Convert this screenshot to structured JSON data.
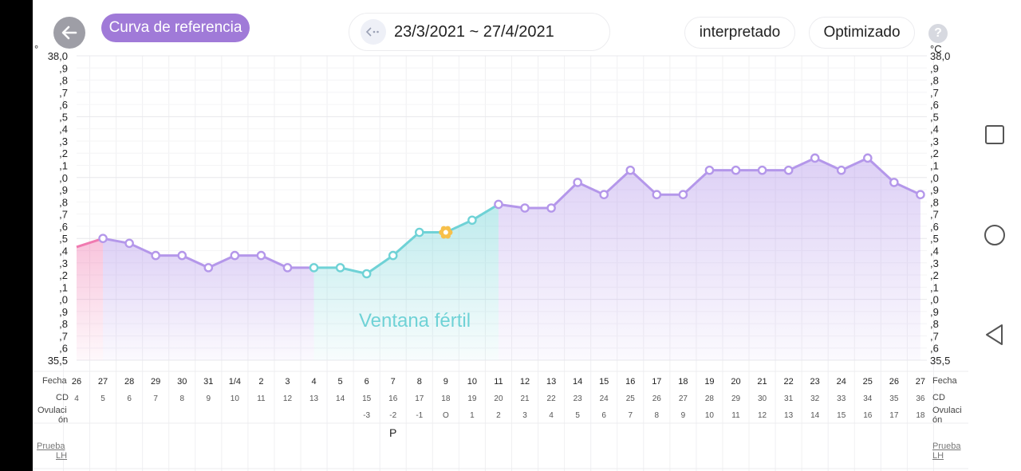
{
  "header": {
    "back_icon": "arrow-left-icon",
    "reference_curve_label": "Curva de referencia",
    "date_range": "23/3/2021 ~ 27/4/2021",
    "date_range_icon": "collapse-arrows-icon",
    "interpreted_label": "interpretado",
    "optimized_label": "Optimizado",
    "help_label": "?"
  },
  "axis": {
    "unit_left": "°",
    "unit_right": "°C",
    "tick_labels": [
      "35,5",
      ",6",
      ",7",
      ",8",
      ",9",
      ",0",
      ",1",
      ",2",
      ",3",
      ",4",
      ",5",
      ",6",
      ",7",
      ",8",
      ",9",
      ",0",
      ",1",
      ",2",
      ",3",
      ",4",
      ",5",
      ",6",
      ",7",
      ",8",
      ",9",
      "38,0"
    ]
  },
  "rows": {
    "fecha": "Fecha",
    "cd": "CD",
    "ovulacion_1": "Ovulaci",
    "ovulacion_2": "ón",
    "lh_1": "Prueba",
    "lh_2": "LH"
  },
  "fertile_window_label": "Ventana fértil",
  "colors": {
    "purple": "#b497ea",
    "teal": "#6fd2d6",
    "pink": "#f07ab0",
    "ovulation": "#f7c04a"
  },
  "chart_data": {
    "type": "line",
    "ylim": [
      35.5,
      38.0
    ],
    "ylabel": "°C",
    "dates": [
      "26",
      "27",
      "28",
      "29",
      "30",
      "31",
      "1/4",
      "2",
      "3",
      "4",
      "5",
      "6",
      "7",
      "8",
      "9",
      "10",
      "11",
      "12",
      "13",
      "14",
      "15",
      "16",
      "17",
      "18",
      "19",
      "20",
      "21",
      "22",
      "23",
      "24",
      "25",
      "26",
      "27"
    ],
    "cycle_days": [
      "4",
      "5",
      "6",
      "7",
      "8",
      "9",
      "10",
      "11",
      "12",
      "13",
      "14",
      "15",
      "16",
      "17",
      "18",
      "19",
      "20",
      "21",
      "22",
      "23",
      "24",
      "25",
      "26",
      "27",
      "28",
      "29",
      "30",
      "31",
      "32",
      "33",
      "34",
      "35",
      "36"
    ],
    "ovulation_offsets": [
      "",
      "",
      "",
      "",
      "",
      "",
      "",
      "",
      "",
      "",
      "",
      "-3",
      "-2",
      "-1",
      "O",
      "1",
      "2",
      "3",
      "4",
      "5",
      "6",
      "7",
      "8",
      "9",
      "10",
      "11",
      "12",
      "13",
      "14",
      "15",
      "16",
      "17",
      "18"
    ],
    "lh_tests": [
      "",
      "",
      "",
      "",
      "",
      "",
      "",
      "",
      "",
      "",
      "",
      "",
      "P",
      "",
      "",
      "",
      "",
      "",
      "",
      "",
      "",
      "",
      "",
      "",
      "",
      "",
      "",
      "",
      "",
      "",
      "",
      "",
      ""
    ],
    "temperatures": [
      36.43,
      36.5,
      36.46,
      36.36,
      36.36,
      36.26,
      36.36,
      36.36,
      36.26,
      36.26,
      36.26,
      36.21,
      36.36,
      36.55,
      36.55,
      36.65,
      36.78,
      36.75,
      36.75,
      36.96,
      36.86,
      37.06,
      36.86,
      36.86,
      37.06,
      37.06,
      37.06,
      37.06,
      37.16,
      37.06,
      37.16,
      36.96,
      36.86
    ],
    "series": [
      {
        "name": "",
        "segment": "previous",
        "from": 0,
        "to": 1
      },
      {
        "name": "",
        "segment": "pre-fertile",
        "from": 1,
        "to": 9
      },
      {
        "name": "Ventana fértil",
        "segment": "fertile",
        "from": 9,
        "to": 16
      },
      {
        "name": "",
        "segment": "luteal",
        "from": 16,
        "to": 32
      }
    ],
    "ovulation_index": 14
  },
  "navbar": {
    "recents_icon": "square-icon",
    "home_icon": "circle-icon",
    "back_icon": "triangle-back-icon"
  }
}
